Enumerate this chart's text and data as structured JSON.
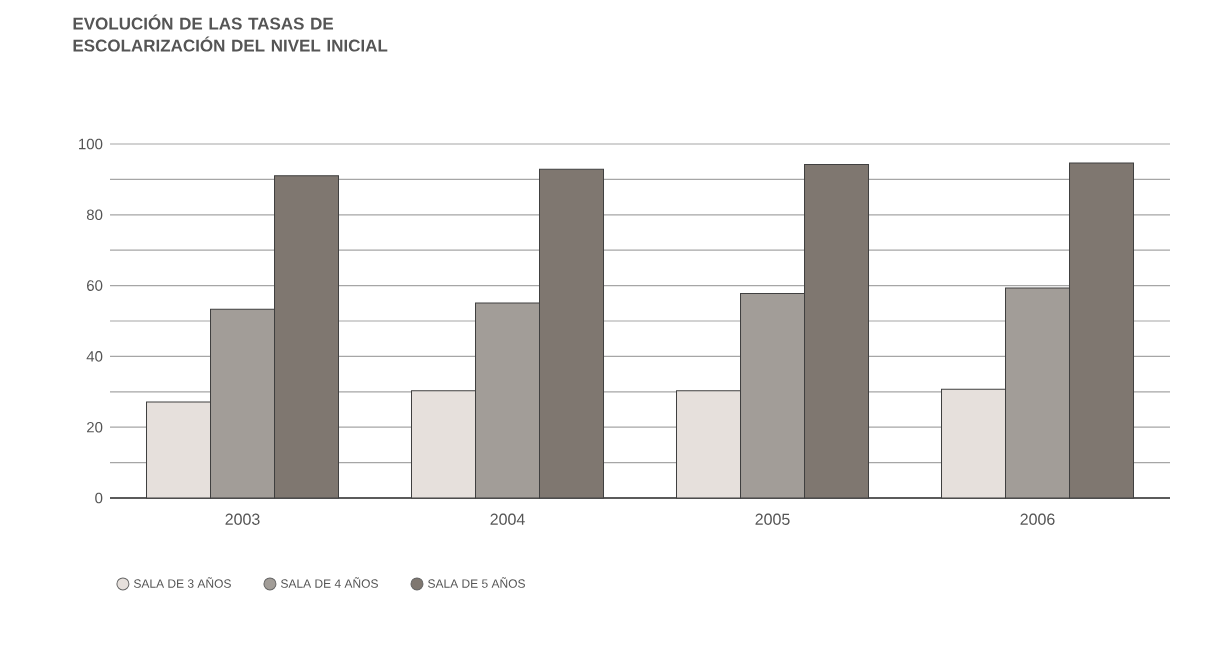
{
  "chart_data": {
    "type": "bar",
    "title": "EVOLUCIÓN DE LAS TASAS DE ESCOLARIZACIÓN DEL NIVEL INICIAL",
    "categories": [
      "2003",
      "2004",
      "2005",
      "2006"
    ],
    "series": [
      {
        "name": "SALA DE 3 AÑOS",
        "color": "#e6e0dc",
        "values": [
          27.1,
          30.3,
          30.3,
          30.7
        ]
      },
      {
        "name": "SALA DE 4 AÑOS",
        "color": "#a29d98",
        "values": [
          53.3,
          55.1,
          57.8,
          59.3
        ]
      },
      {
        "name": "SALA DE 5 AÑOS",
        "color": "#7f7770",
        "values": [
          91.0,
          92.9,
          94.2,
          94.6
        ]
      }
    ],
    "ylim": [
      0,
      100
    ],
    "yticks": [
      0,
      {
        "value": 10,
        "label": null
      },
      20,
      {
        "value": 30,
        "label": null
      },
      40,
      {
        "value": 50,
        "label": null
      },
      60,
      {
        "value": 70,
        "label": null
      },
      80,
      {
        "value": 90,
        "label": null
      },
      100
    ],
    "grid": "y",
    "legend": "bottom left"
  }
}
